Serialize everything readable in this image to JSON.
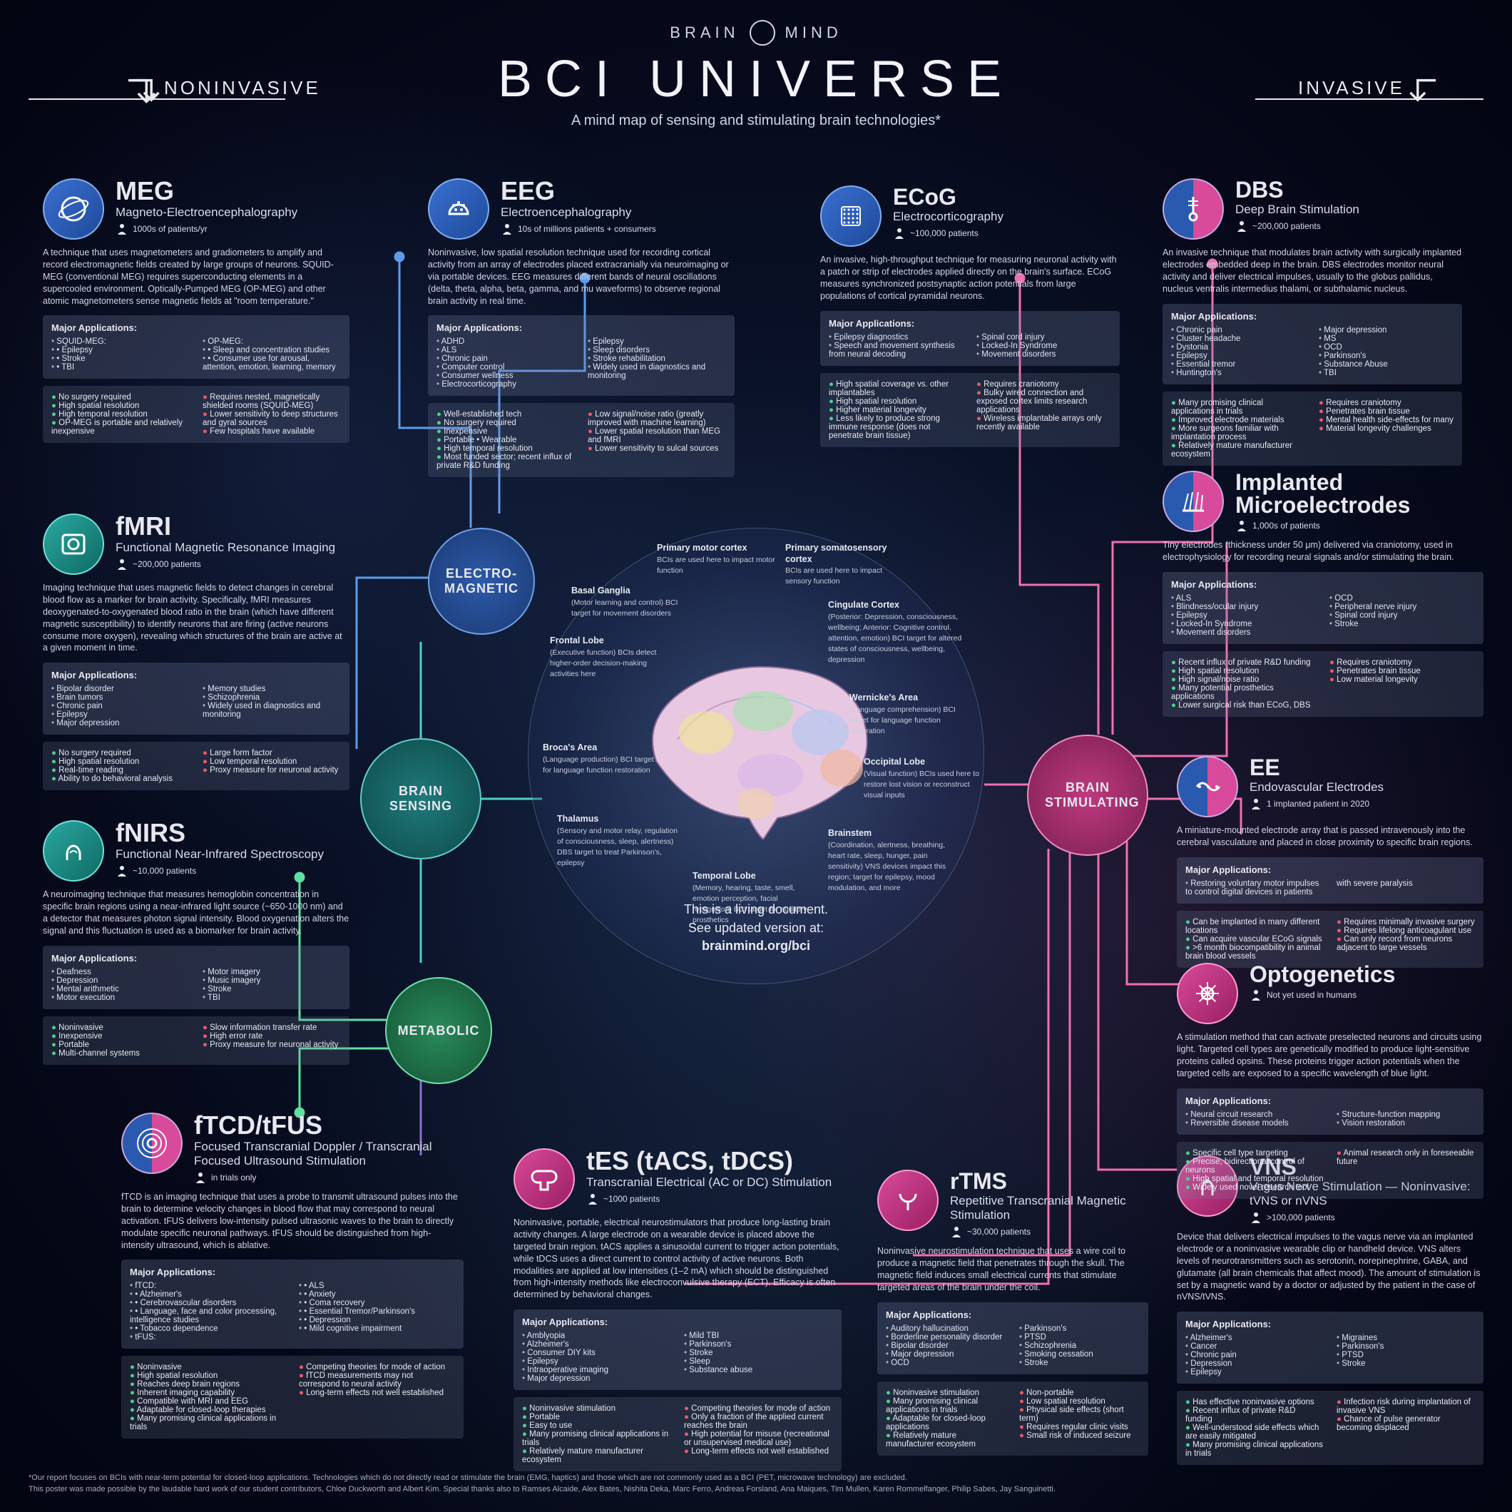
{
  "brand": {
    "left": "BRAIN",
    "right": "MIND"
  },
  "title": "BCI UNIVERSE",
  "subtitle": "A mind map of sensing and stimulating brain technologies*",
  "sections": {
    "left": "NONINVASIVE",
    "right": "INVASIVE"
  },
  "colors": {
    "blue": "#3a6fd0",
    "teal": "#2aa8a0",
    "green": "#3ab878",
    "pink": "#d84a9a",
    "line_blue": "#5f9be8",
    "line_teal": "#4fd0c8",
    "line_green": "#5fe0a0",
    "line_pink": "#f070b0",
    "pro": "#4fd08a",
    "con": "#e85a6a",
    "bg_panel": "rgba(120,130,160,0.28)"
  },
  "hubs": {
    "electro": "ELECTRO-MAGNETIC",
    "sensing": "BRAIN SENSING",
    "metabolic": "METABOLIC",
    "stim": "BRAIN STIMULATING"
  },
  "center": {
    "caption_a": "This is a living document.",
    "caption_b": "See updated version at:",
    "caption_c": "brainmind.org/bci",
    "regions": [
      {
        "t": "Primary motor cortex",
        "d": "BCIs are used here to impact motor function"
      },
      {
        "t": "Primary somatosensory cortex",
        "d": "BCIs are used here to impact sensory function"
      },
      {
        "t": "Basal Ganglia",
        "d": "(Motor learning and control) BCI target for movement disorders"
      },
      {
        "t": "Cingulate Cortex",
        "d": "(Posterior: Depression, consciousness, wellbeing; Anterior: Cognitive control, attention, emotion) BCI target for altered states of consciousness, wellbeing, depression"
      },
      {
        "t": "Frontal Lobe",
        "d": "(Executive function) BCIs detect higher-order decision-making activities here"
      },
      {
        "t": "Wernicke's Area",
        "d": "(Language comprehension) BCI target for language function restoration"
      },
      {
        "t": "Broca's Area",
        "d": "(Language production) BCI target for language function restoration"
      },
      {
        "t": "Occipital Lobe",
        "d": "(Visual function) BCIs used here to restore lost vision or reconstruct visual inputs"
      },
      {
        "t": "Thalamus",
        "d": "(Sensory and motor relay, regulation of consciousness, sleep, alertness) DBS target to treat Parkinson's, epilepsy"
      },
      {
        "t": "Brainstem",
        "d": "(Coordination, alertness, breathing, heart rate, sleep, hunger, pain sensitivity) VNS devices impact this region; target for epilepsy, mood modulation, and more"
      },
      {
        "t": "Temporal Lobe",
        "d": "(Memory, hearing, taste, smell, emotion perception, facial recognition) BCI target for auditory prosthetics"
      }
    ]
  },
  "techs": {
    "meg": {
      "abbr": "MEG",
      "full": "Magneto-Electroencephalography",
      "stat": "1000s of patients/yr",
      "desc": "A technique that uses magnetometers and gradiometers to amplify and record electromagnetic fields created by large groups of neurons. SQUID-MEG (conventional MEG) requires superconducting elements in a supercooled environment. Optically-Pumped MEG (OP-MEG) and other atomic magnetometers sense magnetic fields at \"room temperature.\"",
      "apps": [
        "SQUID-MEG:",
        "• Epilepsy",
        "• Stroke",
        "• TBI",
        "OP-MEG:",
        "• Sleep and concentration studies",
        "• Consumer use for arousal, attention, emotion, learning, memory"
      ],
      "pros": [
        "No surgery required",
        "High spatial resolution",
        "High temporal resolution",
        "OP-MEG is portable and relatively inexpensive"
      ],
      "cons": [
        "Requires nested, magnetically shielded rooms (SQUID-MEG)",
        "Lower sensitivity to deep structures and gyral sources",
        "Few hospitals have available"
      ]
    },
    "eeg": {
      "abbr": "EEG",
      "full": "Electroencephalography",
      "stat": "10s of millions patients + consumers",
      "desc": "Noninvasive, low spatial resolution technique used for recording cortical activity from an array of electrodes placed extracranially via neuroimaging or via portable devices. EEG measures different bands of neural oscillations (delta, theta, alpha, beta, gamma, and mu waveforms) to observe regional brain activity in real time.",
      "apps": [
        "ADHD",
        "ALS",
        "Chronic pain",
        "Computer control",
        "Consumer wellness",
        "Electrocorticography",
        "Epilepsy",
        "Sleep disorders",
        "Stroke rehabilitation",
        "Widely used in diagnostics and monitoring"
      ],
      "pros": [
        "Well-established tech",
        "No surgery required",
        "Inexpensive",
        "Portable • Wearable",
        "High temporal resolution",
        "Most funded sector; recent influx of private R&D funding"
      ],
      "cons": [
        "Low signal/noise ratio (greatly improved with machine learning)",
        "Lower spatial resolution than MEG and fMRI",
        "Lower sensitivity to sulcal sources"
      ]
    },
    "fmri": {
      "abbr": "fMRI",
      "full": "Functional Magnetic Resonance Imaging",
      "stat": "~200,000 patients",
      "desc": "Imaging technique that uses magnetic fields to detect changes in cerebral blood flow as a marker for brain activity. Specifically, fMRI measures deoxygenated-to-oxygenated blood ratio in the brain (which have different magnetic susceptibility) to identify neurons that are firing (active neurons consume more oxygen), revealing which structures of the brain are active at a given moment in time.",
      "apps": [
        "Bipolar disorder",
        "Brain tumors",
        "Chronic pain",
        "Epilepsy",
        "Major depression",
        "Memory studies",
        "Schizophrenia",
        "Widely used in diagnostics and monitoring"
      ],
      "pros": [
        "No surgery required",
        "High spatial resolution",
        "Real-time reading",
        "Ability to do behavioral analysis"
      ],
      "cons": [
        "Large form factor",
        "Low temporal resolution",
        "Proxy measure for neuronal activity"
      ]
    },
    "fnirs": {
      "abbr": "fNIRS",
      "full": "Functional Near-Infrared Spectroscopy",
      "stat": "~10,000 patients",
      "desc": "A neuroimaging technique that measures hemoglobin concentration in specific brain regions using a near-infrared light source (~650-1000 nm) and a detector that measures photon signal intensity. Blood oxygenation alters the signal and this fluctuation is used as a biomarker for brain activity.",
      "apps": [
        "Deafness",
        "Depression",
        "Mental arithmetic",
        "Motor execution",
        "Motor imagery",
        "Music imagery",
        "Stroke",
        "TBI"
      ],
      "pros": [
        "Noninvasive",
        "Inexpensive",
        "Portable",
        "Multi-channel systems"
      ],
      "cons": [
        "Slow information transfer rate",
        "High error rate",
        "Proxy measure for neuronal activity"
      ]
    },
    "ftcd": {
      "abbr": "fTCD/tFUS",
      "full": "Focused Transcranial Doppler / Transcranial Focused Ultrasound Stimulation",
      "stat": "in trials only",
      "desc": "fTCD is an imaging technique that uses a probe to transmit ultrasound pulses into the brain to determine velocity changes in blood flow that may correspond to neural activation. tFUS delivers low-intensity pulsed ultrasonic waves to the brain to directly modulate specific neuronal pathways. tFUS should be distinguished from high-intensity ultrasound, which is ablative.",
      "apps": [
        "fTCD:",
        "• Alzheimer's",
        "• Cerebrovascular disorders",
        "• Language, face and color processing, intelligence studies",
        "• Tobacco dependence",
        "tFUS:",
        "• ALS",
        "• Anxiety",
        "• Coma recovery",
        "• Essential Tremor/Parkinson's",
        "• Depression",
        "• Mild cognitive impairment"
      ],
      "pros": [
        "Noninvasive",
        "High spatial resolution",
        "Reaches deep brain regions",
        "Inherent imaging capability",
        "Compatible with MRI and EEG",
        "Adaptable for closed-loop therapies",
        "Many promising clinical applications in trials"
      ],
      "cons": [
        "Competing theories for mode of action",
        "fTCD measurements may not correspond to neural activity",
        "Long-term effects not well established"
      ]
    },
    "tes": {
      "abbr": "tES (tACS, tDCS)",
      "full": "Transcranial Electrical (AC or DC) Stimulation",
      "stat": "~1000 patients",
      "desc": "Noninvasive, portable, electrical neurostimulators that produce long-lasting brain activity changes. A large electrode on a wearable device is placed above the targeted brain region. tACS applies a sinusoidal current to trigger action potentials, while tDCS uses a direct current to control activity of active neurons. Both modalities are applied at low intensities (1–2 mA) which should be distinguished from high-intensity methods like electroconvulsive therapy (ECT). Efficacy is often determined by behavioral changes.",
      "apps": [
        "Amblyopia",
        "Alzheimer's",
        "Consumer DIY kits",
        "Epilepsy",
        "Intraoperative imaging",
        "Major depression",
        "Mild TBI",
        "Parkinson's",
        "Stroke",
        "Sleep",
        "Substance abuse"
      ],
      "pros": [
        "Noninvasive stimulation",
        "Portable",
        "Easy to use",
        "Many promising clinical applications in trials",
        "Relatively mature manufacturer ecosystem"
      ],
      "cons": [
        "Competing theories for mode of action",
        "Only a fraction of the applied current reaches the brain",
        "High potential for misuse (recreational or unsupervised medical use)",
        "Long-term effects not well established"
      ]
    },
    "rtms": {
      "abbr": "rTMS",
      "full": "Repetitive Transcranial Magnetic Stimulation",
      "stat": "~30,000 patients",
      "desc": "Noninvasive neurostimulation technique that uses a wire coil to produce a magnetic field that penetrates through the skull. The magnetic field induces small electrical currents that stimulate targeted areas of the brain under the coil.",
      "apps": [
        "Auditory hallucination",
        "Borderline personality disorder",
        "Bipolar disorder",
        "Major depression",
        "OCD",
        "Parkinson's",
        "PTSD",
        "Schizophrenia",
        "Smoking cessation",
        "Stroke"
      ],
      "pros": [
        "Noninvasive stimulation",
        "Many promising clinical applications in trials",
        "Adaptable for closed-loop applications",
        "Relatively mature manufacturer ecosystem"
      ],
      "cons": [
        "Non-portable",
        "Low spatial resolution",
        "Physical side effects (short term)",
        "Requires regular clinic visits",
        "Small risk of induced seizure"
      ]
    },
    "ecog": {
      "abbr": "ECoG",
      "full": "Electrocorticography",
      "stat": "~100,000 patients",
      "desc": "An invasive, high-throughput technique for measuring neuronal activity with a patch or strip of electrodes applied directly on the brain's surface. ECoG measures synchronized postsynaptic action potentials from large populations of cortical pyramidal neurons.",
      "apps": [
        "Epilepsy diagnostics",
        "Speech and movement synthesis from neural decoding",
        "Spinal cord injury",
        "Locked-In Syndrome",
        "Movement disorders"
      ],
      "pros": [
        "High spatial coverage vs. other implantables",
        "High spatial resolution",
        "Higher material longevity",
        "Less likely to produce strong immune response (does not penetrate brain tissue)"
      ],
      "cons": [
        "Requires craniotomy",
        "Bulky wired connection and exposed cortex limits research applications",
        "Wireless implantable arrays only recently available"
      ]
    },
    "dbs": {
      "abbr": "DBS",
      "full": "Deep Brain Stimulation",
      "stat": "~200,000 patients",
      "desc": "An invasive technique that modulates brain activity with surgically implanted electrodes embedded deep in the brain. DBS electrodes monitor neural activity and deliver electrical impulses, usually to the globus pallidus, nucleus ventralis intermedius thalami, or subthalamic nucleus.",
      "apps": [
        "Chronic pain",
        "Cluster headache",
        "Dystonia",
        "Epilepsy",
        "Essential tremor",
        "Huntington's",
        "Major depression",
        "MS",
        "OCD",
        "Parkinson's",
        "Substance Abuse",
        "TBI"
      ],
      "pros": [
        "Many promising clinical applications in trials",
        "Improved electrode materials",
        "More surgeons familiar with implantation process",
        "Relatively mature manufacturer ecosystem"
      ],
      "cons": [
        "Requires craniotomy",
        "Penetrates brain tissue",
        "Mental health side-effects for many",
        "Material longevity challenges"
      ]
    },
    "ime": {
      "abbr": "Implanted Microelectrodes",
      "full": "",
      "stat": "1,000s of patients",
      "desc": "Tiny electrodes (thickness under 50 μm) delivered via craniotomy, used in electrophysiology for recording neural signals and/or stimulating the brain.",
      "apps": [
        "ALS",
        "Blindness/ocular injury",
        "Epilepsy",
        "Locked-In Syndrome",
        "Movement disorders",
        "OCD",
        "Peripheral nerve injury",
        "Spinal cord injury",
        "Stroke"
      ],
      "pros": [
        "Recent influx of private R&D funding",
        "High spatial resolution",
        "High signal/noise ratio",
        "Many potential prosthetics applications",
        "Lower surgical risk than ECoG, DBS"
      ],
      "cons": [
        "Requires craniotomy",
        "Penetrates brain tissue",
        "Low material longevity"
      ]
    },
    "ee": {
      "abbr": "EE",
      "full": "Endovascular Electrodes",
      "stat": "1 implanted patient in 2020",
      "desc": "A miniature-mounted electrode array that is passed intravenously into the cerebral vasculature and placed in close proximity to specific brain regions.",
      "apps": [
        "Restoring voluntary motor impulses to control digital devices in patients with severe paralysis"
      ],
      "pros": [
        "Can be implanted in many different locations",
        "Can acquire vascular ECoG signals",
        ">6 month biocompatibility in animal brain blood vessels"
      ],
      "cons": [
        "Requires minimally invasive surgery",
        "Requires lifelong anticoagulant use",
        "Can only record from neurons adjacent to large vessels"
      ]
    },
    "opto": {
      "abbr": "Optogenetics",
      "full": "",
      "stat": "Not yet used in humans",
      "desc": "A stimulation method that can activate preselected neurons and circuits using light. Targeted cell types are genetically modified to produce light-sensitive proteins called opsins. These proteins trigger action potentials when the targeted cells are exposed to a specific wavelength of blue light.",
      "apps": [
        "Neural circuit research",
        "Reversible disease models",
        "Structure-function mapping",
        "Vision restoration"
      ],
      "pros": [
        "Specific cell type targeting",
        "Precise, bidirectional control of neurons",
        "High spatial and temporal resolution",
        "Widely used novel research tool"
      ],
      "cons": [
        "Animal research only in foreseeable future"
      ]
    },
    "vns": {
      "abbr": "VNS",
      "full": "Vagus Nerve Stimulation — Noninvasive: tVNS or nVNS",
      "stat": ">100,000 patients",
      "desc": "Device that delivers electrical impulses to the vagus nerve via an implanted electrode or a noninvasive wearable clip or handheld device. VNS alters levels of neurotransmitters such as serotonin, norepinephrine, GABA, and glutamate (all brain chemicals that affect mood). The amount of stimulation is set by a magnetic wand by a doctor or adjusted by the patient in the case of nVNS/tVNS.",
      "apps": [
        "Alzheimer's",
        "Cancer",
        "Chronic pain",
        "Depression",
        "Epilepsy",
        "Migraines",
        "Parkinson's",
        "PTSD",
        "Stroke"
      ],
      "pros": [
        "Has effective noninvasive options",
        "Recent influx of private R&D funding",
        "Well-understood side effects which are easily mitigated",
        "Many promising clinical applications in trials"
      ],
      "cons": [
        "Infection risk during implantation of invasive VNS",
        "Chance of pulse generator becoming displaced"
      ]
    }
  },
  "apps_header": "Major Applications:",
  "footnote_a": "*Our report focuses on BCIs with near-term potential for closed-loop applications. Technologies which do not directly read or stimulate the brain (EMG, haptics) and those which are not commonly used as a BCI (PET, microwave technology) are excluded.",
  "footnote_b": "This poster was made possible by the laudable hard work of our student contributors, Chloe Duckworth and Albert Kim. Special thanks also to Ramses Alcaide, Alex Bates, Nishita Deka, Marc Ferro, Andreas Forsland, Ana Maiques, Tim Mullen, Karen Rommelfanger, Philip Sabes, Jay Sanguinetti."
}
